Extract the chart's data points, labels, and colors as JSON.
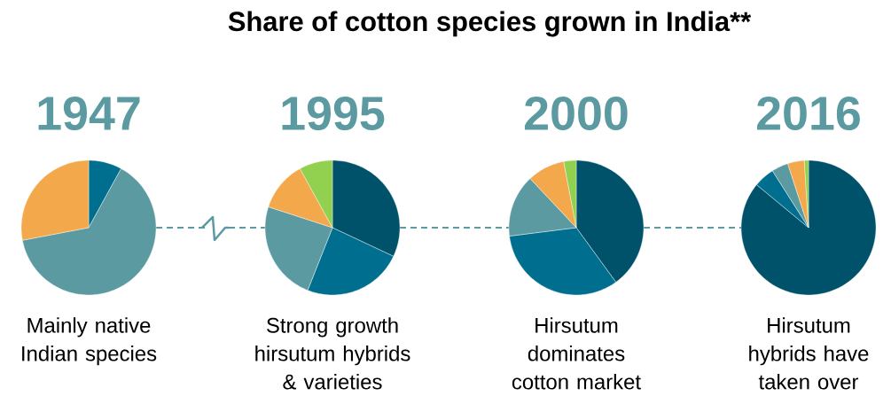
{
  "chart_data": [
    {
      "type": "pie",
      "title": "Share of cotton species grown in India**",
      "subtitle": "1947",
      "categories": [
        null,
        null,
        null
      ],
      "values": [
        8,
        64,
        28
      ],
      "colors": [
        "#006e8e",
        "#5b9aa0",
        "#f4a84c"
      ],
      "annotations": [
        "Mainly native Indian species"
      ]
    },
    {
      "type": "pie",
      "subtitle": "1995",
      "categories": [
        null,
        null,
        null,
        null,
        null
      ],
      "values": [
        32,
        24,
        24,
        12,
        8
      ],
      "colors": [
        "#00526b",
        "#006e8e",
        "#5b9aa0",
        "#f4a84c",
        "#92d050"
      ],
      "annotations": [
        "Strong growth hirsutum hybrids & varieties"
      ]
    },
    {
      "type": "pie",
      "subtitle": "2000",
      "categories": [
        null,
        null,
        null,
        null,
        null
      ],
      "values": [
        40,
        33,
        15,
        9,
        3
      ],
      "colors": [
        "#00526b",
        "#006e8e",
        "#5b9aa0",
        "#f4a84c",
        "#92d050"
      ],
      "annotations": [
        "Hirsutum dominates cotton market"
      ]
    },
    {
      "type": "pie",
      "subtitle": "2016",
      "categories": [
        null,
        null,
        null,
        null,
        null
      ],
      "values": [
        86,
        5,
        4,
        4,
        1
      ],
      "colors": [
        "#00526b",
        "#006e8e",
        "#5b9aa0",
        "#f4a84c",
        "#92d050"
      ],
      "annotations": [
        "Hirsutum hybrids have taken over"
      ]
    }
  ]
}
